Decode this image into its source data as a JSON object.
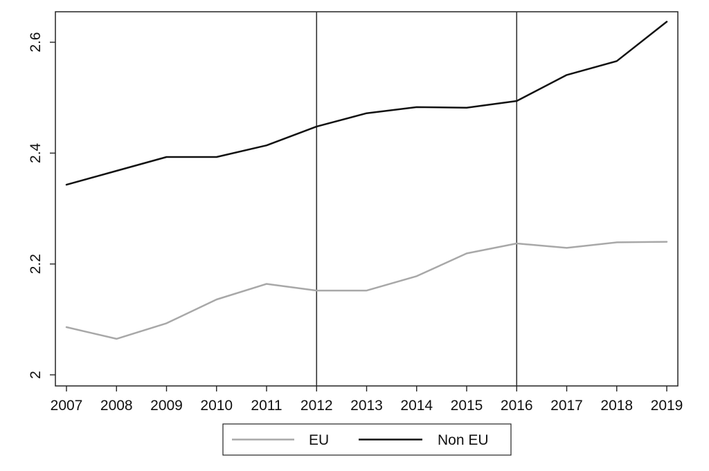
{
  "chart_data": {
    "type": "line",
    "title": "",
    "xlabel": "",
    "ylabel": "",
    "x": [
      2007,
      2008,
      2009,
      2010,
      2011,
      2012,
      2013,
      2014,
      2015,
      2016,
      2017,
      2018,
      2019
    ],
    "xticks": [
      "2007",
      "2008",
      "2009",
      "2010",
      "2011",
      "2012",
      "2013",
      "2014",
      "2015",
      "2016",
      "2017",
      "2018",
      "2019"
    ],
    "yticks": [
      "2",
      "2.2",
      "2.4",
      "2.6"
    ],
    "ytick_values": [
      2.0,
      2.2,
      2.4,
      2.6
    ],
    "xlim": [
      2007,
      2019
    ],
    "ylim": [
      1.98,
      2.655
    ],
    "grid": false,
    "reference_lines_x": [
      2012,
      2016
    ],
    "legend_position": "bottom-center",
    "series": [
      {
        "name": "EU",
        "color": "#a8a8a8",
        "values": [
          2.086,
          2.065,
          2.093,
          2.136,
          2.164,
          2.152,
          2.152,
          2.178,
          2.219,
          2.237,
          2.229,
          2.239,
          2.24
        ]
      },
      {
        "name": "Non EU",
        "color": "#111111",
        "values": [
          2.343,
          2.368,
          2.393,
          2.393,
          2.414,
          2.448,
          2.472,
          2.483,
          2.482,
          2.494,
          2.541,
          2.566,
          2.637
        ]
      }
    ]
  }
}
